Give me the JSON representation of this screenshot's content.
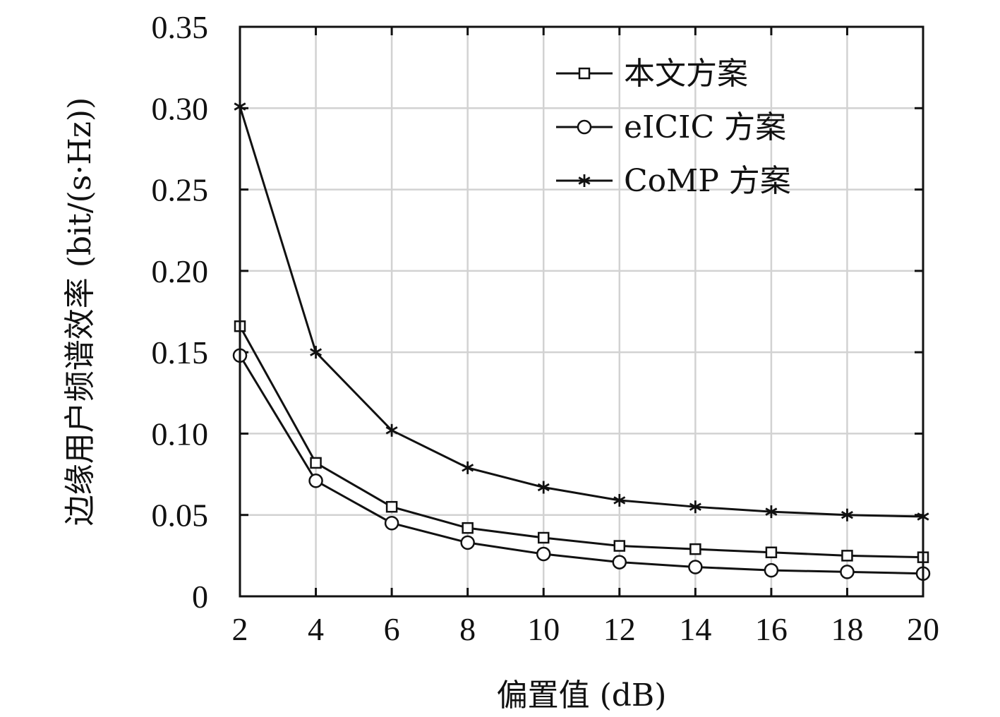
{
  "chart_data": {
    "type": "line",
    "title": "",
    "xlabel": "偏置值 (dB)",
    "ylabel": "边缘用户频谱效率 (bit/(s·Hz))",
    "x": [
      2,
      4,
      6,
      8,
      10,
      12,
      14,
      16,
      18,
      20
    ],
    "xlim": [
      2,
      20
    ],
    "ylim": [
      0,
      0.35
    ],
    "xticks": [
      "2",
      "4",
      "6",
      "8",
      "10",
      "12",
      "14",
      "16",
      "18",
      "20"
    ],
    "yticks": [
      "0",
      "0.05",
      "0.10",
      "0.15",
      "0.20",
      "0.25",
      "0.30",
      "0.35"
    ],
    "grid": true,
    "legend_position": "top-right",
    "series": [
      {
        "name": "本文方案",
        "marker": "square",
        "values": [
          0.166,
          0.082,
          0.055,
          0.042,
          0.036,
          0.031,
          0.029,
          0.027,
          0.025,
          0.024
        ]
      },
      {
        "name": "eICIC 方案",
        "marker": "circle",
        "values": [
          0.148,
          0.071,
          0.045,
          0.033,
          0.026,
          0.021,
          0.018,
          0.016,
          0.015,
          0.014
        ]
      },
      {
        "name": "CoMP 方案",
        "marker": "asterisk",
        "values": [
          0.301,
          0.15,
          0.102,
          0.079,
          0.067,
          0.059,
          0.055,
          0.052,
          0.05,
          0.049
        ]
      }
    ]
  }
}
